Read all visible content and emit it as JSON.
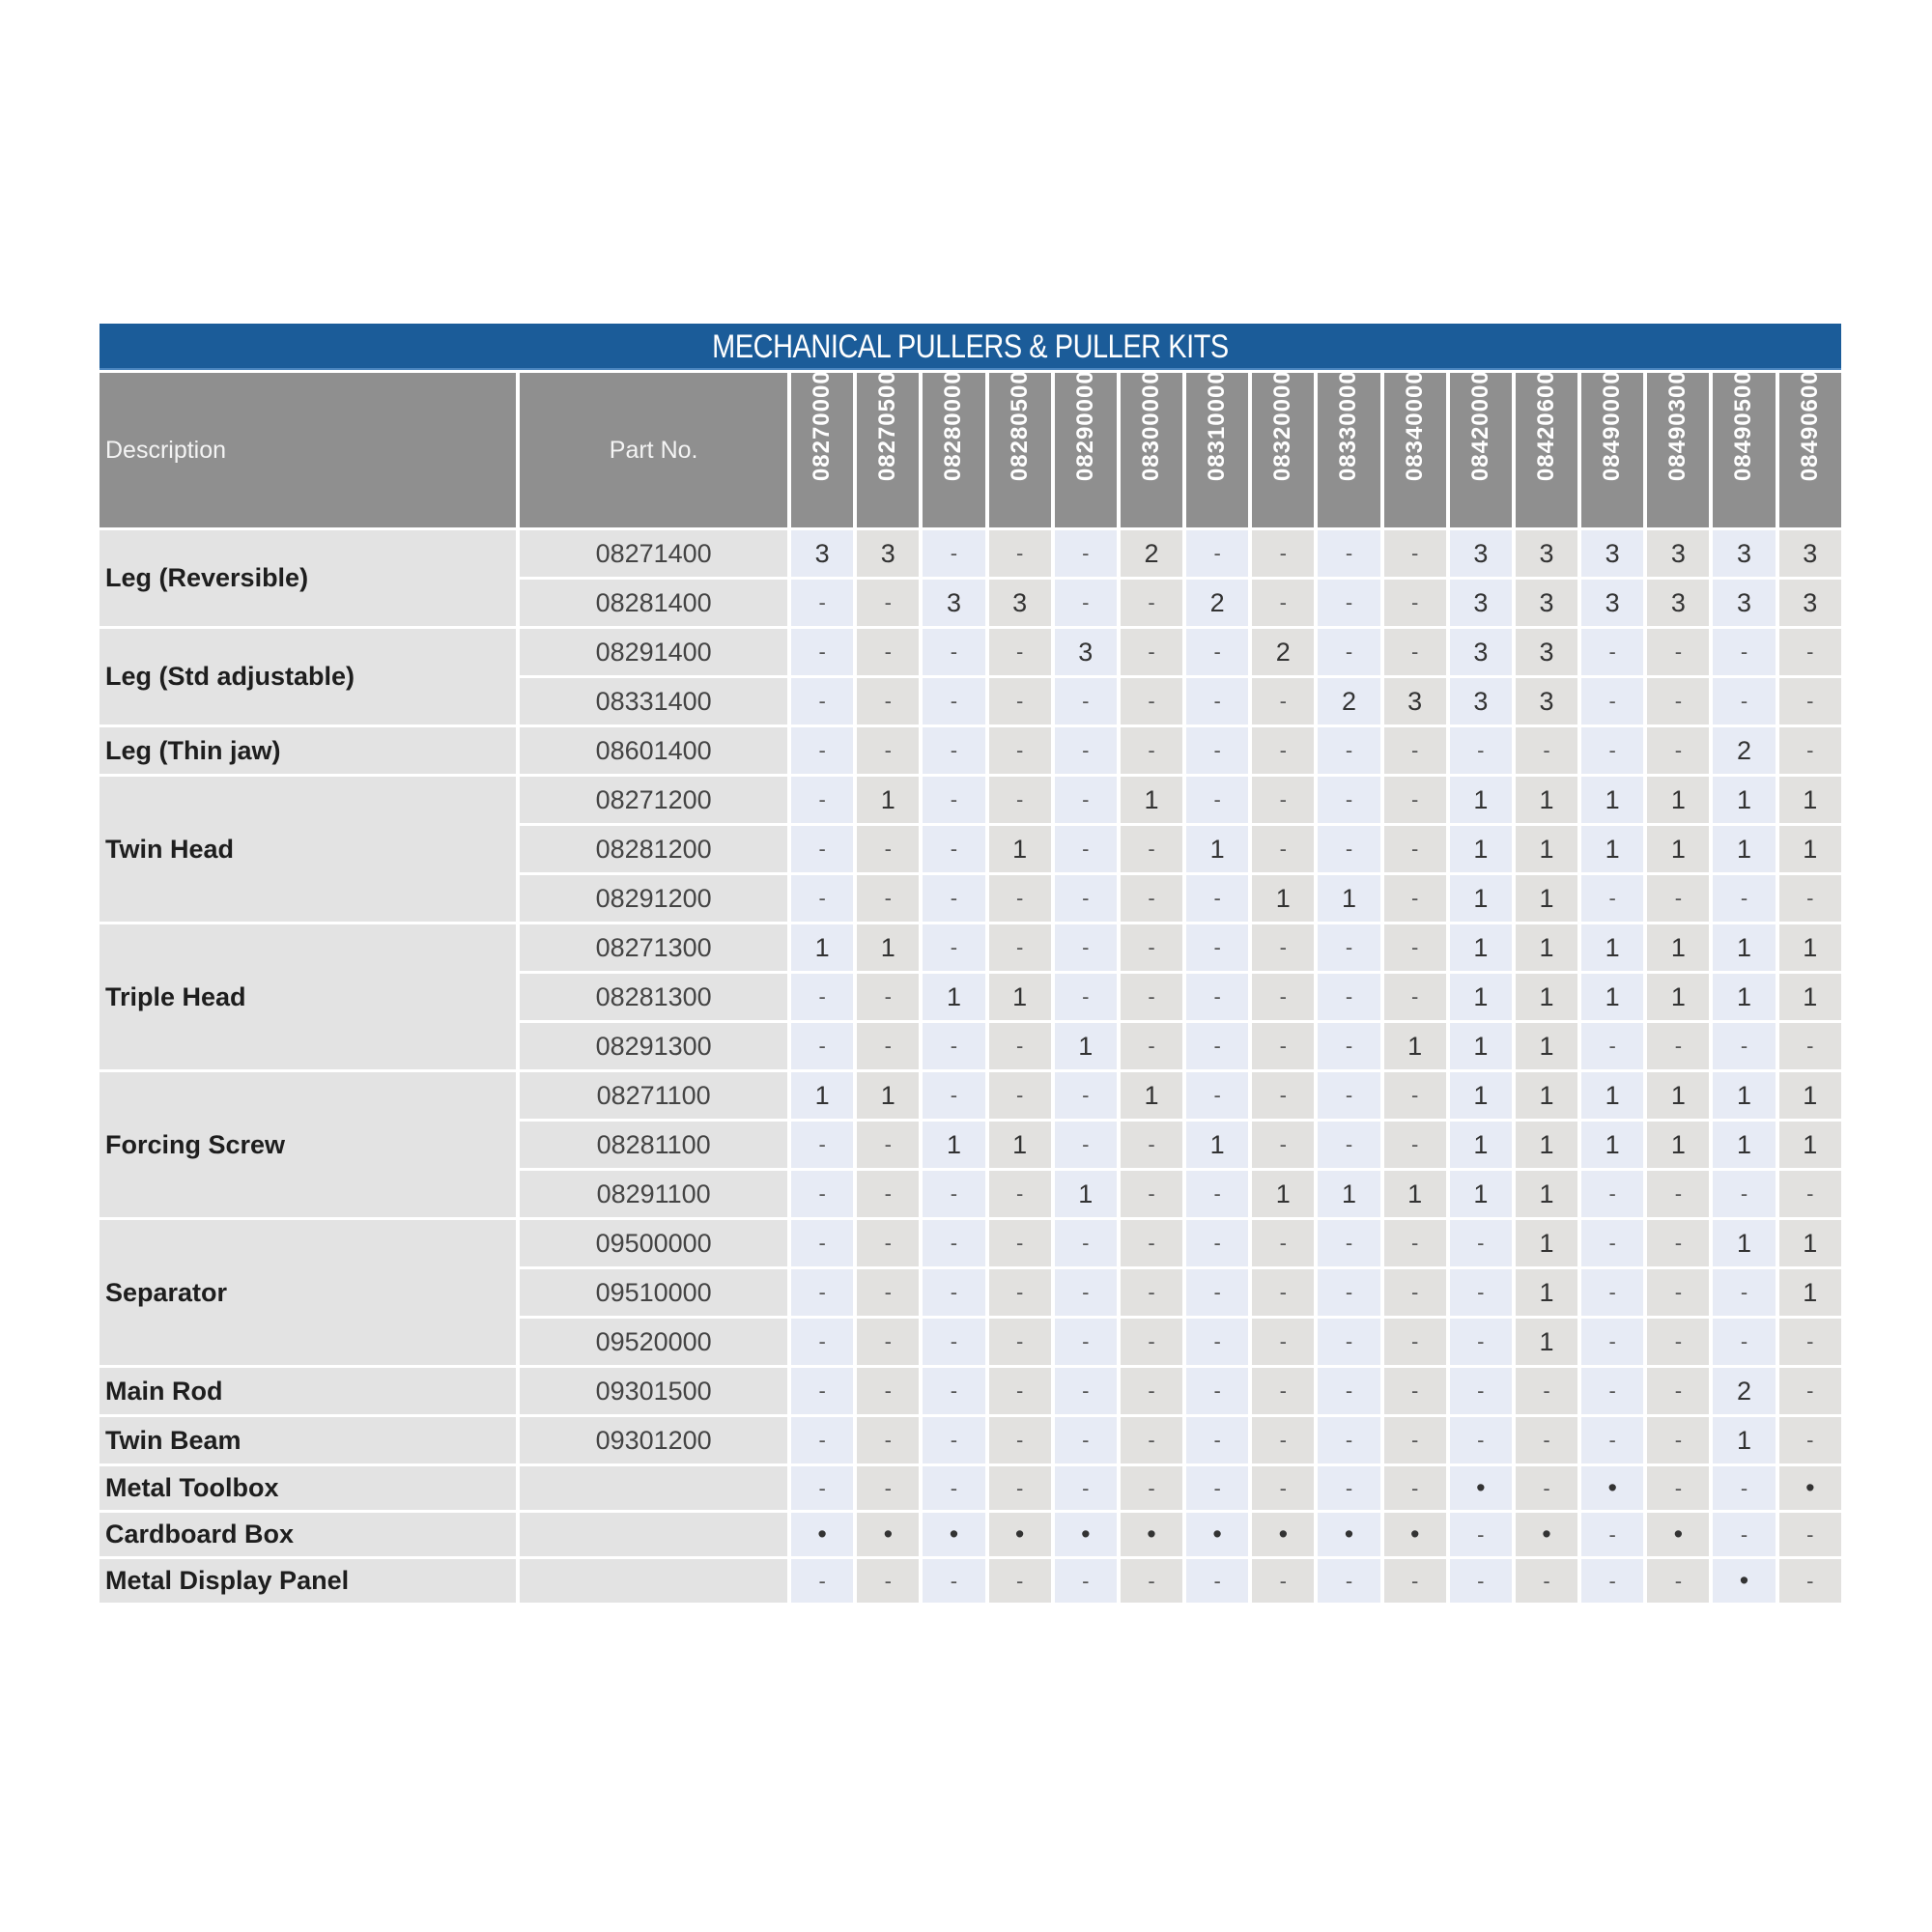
{
  "title": "MECHANICAL PULLERS & PULLER KITS",
  "headers": {
    "description": "Description",
    "part_no": "Part No."
  },
  "kits": [
    "08270000",
    "08270500",
    "08280000",
    "08280500",
    "08290000",
    "08300000",
    "08310000",
    "08320000",
    "08330000",
    "08340000",
    "08420000",
    "08420600",
    "08490000",
    "08490300",
    "08490500",
    "08490600"
  ],
  "groups": [
    {
      "description": "Leg (Reversible)",
      "rows": [
        {
          "part": "08271400",
          "values": [
            "3",
            "3",
            "-",
            "-",
            "-",
            "2",
            "-",
            "-",
            "-",
            "-",
            "3",
            "3",
            "3",
            "3",
            "3",
            "3"
          ]
        },
        {
          "part": "08281400",
          "values": [
            "-",
            "-",
            "3",
            "3",
            "-",
            "-",
            "2",
            "-",
            "-",
            "-",
            "3",
            "3",
            "3",
            "3",
            "3",
            "3"
          ]
        }
      ]
    },
    {
      "description": "Leg (Std adjustable)",
      "rows": [
        {
          "part": "08291400",
          "values": [
            "-",
            "-",
            "-",
            "-",
            "3",
            "-",
            "-",
            "2",
            "-",
            "-",
            "3",
            "3",
            "-",
            "-",
            "-",
            "-"
          ]
        },
        {
          "part": "08331400",
          "values": [
            "-",
            "-",
            "-",
            "-",
            "-",
            "-",
            "-",
            "-",
            "2",
            "3",
            "3",
            "3",
            "-",
            "-",
            "-",
            "-"
          ]
        }
      ]
    },
    {
      "description": "Leg (Thin jaw)",
      "rows": [
        {
          "part": "08601400",
          "values": [
            "-",
            "-",
            "-",
            "-",
            "-",
            "-",
            "-",
            "-",
            "-",
            "-",
            "-",
            "-",
            "-",
            "-",
            "2",
            "-"
          ]
        }
      ]
    },
    {
      "description": "Twin Head",
      "rows": [
        {
          "part": "08271200",
          "values": [
            "-",
            "1",
            "-",
            "-",
            "-",
            "1",
            "-",
            "-",
            "-",
            "-",
            "1",
            "1",
            "1",
            "1",
            "1",
            "1"
          ]
        },
        {
          "part": "08281200",
          "values": [
            "-",
            "-",
            "-",
            "1",
            "-",
            "-",
            "1",
            "-",
            "-",
            "-",
            "1",
            "1",
            "1",
            "1",
            "1",
            "1"
          ]
        },
        {
          "part": "08291200",
          "values": [
            "-",
            "-",
            "-",
            "-",
            "-",
            "-",
            "-",
            "1",
            "1",
            "-",
            "1",
            "1",
            "-",
            "-",
            "-",
            "-"
          ]
        }
      ]
    },
    {
      "description": "Triple Head",
      "rows": [
        {
          "part": "08271300",
          "values": [
            "1",
            "1",
            "-",
            "-",
            "-",
            "-",
            "-",
            "-",
            "-",
            "-",
            "1",
            "1",
            "1",
            "1",
            "1",
            "1"
          ]
        },
        {
          "part": "08281300",
          "values": [
            "-",
            "-",
            "1",
            "1",
            "-",
            "-",
            "-",
            "-",
            "-",
            "-",
            "1",
            "1",
            "1",
            "1",
            "1",
            "1"
          ]
        },
        {
          "part": "08291300",
          "values": [
            "-",
            "-",
            "-",
            "-",
            "1",
            "-",
            "-",
            "-",
            "-",
            "1",
            "1",
            "1",
            "-",
            "-",
            "-",
            "-"
          ]
        }
      ]
    },
    {
      "description": "Forcing Screw",
      "rows": [
        {
          "part": "08271100",
          "values": [
            "1",
            "1",
            "-",
            "-",
            "-",
            "1",
            "-",
            "-",
            "-",
            "-",
            "1",
            "1",
            "1",
            "1",
            "1",
            "1"
          ]
        },
        {
          "part": "08281100",
          "values": [
            "-",
            "-",
            "1",
            "1",
            "-",
            "-",
            "1",
            "-",
            "-",
            "-",
            "1",
            "1",
            "1",
            "1",
            "1",
            "1"
          ]
        },
        {
          "part": "08291100",
          "values": [
            "-",
            "-",
            "-",
            "-",
            "1",
            "-",
            "-",
            "1",
            "1",
            "1",
            "1",
            "1",
            "-",
            "-",
            "-",
            "-"
          ]
        }
      ]
    },
    {
      "description": "Separator",
      "rows": [
        {
          "part": "09500000",
          "values": [
            "-",
            "-",
            "-",
            "-",
            "-",
            "-",
            "-",
            "-",
            "-",
            "-",
            "-",
            "1",
            "-",
            "-",
            "1",
            "1"
          ]
        },
        {
          "part": "09510000",
          "values": [
            "-",
            "-",
            "-",
            "-",
            "-",
            "-",
            "-",
            "-",
            "-",
            "-",
            "-",
            "1",
            "-",
            "-",
            "-",
            "1"
          ]
        },
        {
          "part": "09520000",
          "values": [
            "-",
            "-",
            "-",
            "-",
            "-",
            "-",
            "-",
            "-",
            "-",
            "-",
            "-",
            "1",
            "-",
            "-",
            "-",
            "-"
          ]
        }
      ]
    },
    {
      "description": "Main Rod",
      "rows": [
        {
          "part": "09301500",
          "values": [
            "-",
            "-",
            "-",
            "-",
            "-",
            "-",
            "-",
            "-",
            "-",
            "-",
            "-",
            "-",
            "-",
            "-",
            "2",
            "-"
          ]
        }
      ]
    },
    {
      "description": "Twin Beam",
      "rows": [
        {
          "part": "09301200",
          "values": [
            "-",
            "-",
            "-",
            "-",
            "-",
            "-",
            "-",
            "-",
            "-",
            "-",
            "-",
            "-",
            "-",
            "-",
            "1",
            "-"
          ]
        }
      ]
    },
    {
      "description": "Metal Toolbox",
      "short": true,
      "rows": [
        {
          "part": "",
          "values": [
            "-",
            "-",
            "-",
            "-",
            "-",
            "-",
            "-",
            "-",
            "-",
            "-",
            "•",
            "-",
            "•",
            "-",
            "-",
            "•"
          ]
        }
      ]
    },
    {
      "description": "Cardboard Box",
      "short": true,
      "rows": [
        {
          "part": "",
          "values": [
            "•",
            "•",
            "•",
            "•",
            "•",
            "•",
            "•",
            "•",
            "•",
            "•",
            "-",
            "•",
            "-",
            "•",
            "-",
            "-"
          ]
        }
      ]
    },
    {
      "description": "Metal Display Panel",
      "short": true,
      "rows": [
        {
          "part": "",
          "values": [
            "-",
            "-",
            "-",
            "-",
            "-",
            "-",
            "-",
            "-",
            "-",
            "-",
            "-",
            "-",
            "-",
            "-",
            "•",
            "-"
          ]
        }
      ]
    }
  ],
  "colors": {
    "title_bar": "#1b5c99",
    "header": "#8f8f8f",
    "cell_blue": "#e7ebf5",
    "cell_gray": "#e2e1df"
  }
}
